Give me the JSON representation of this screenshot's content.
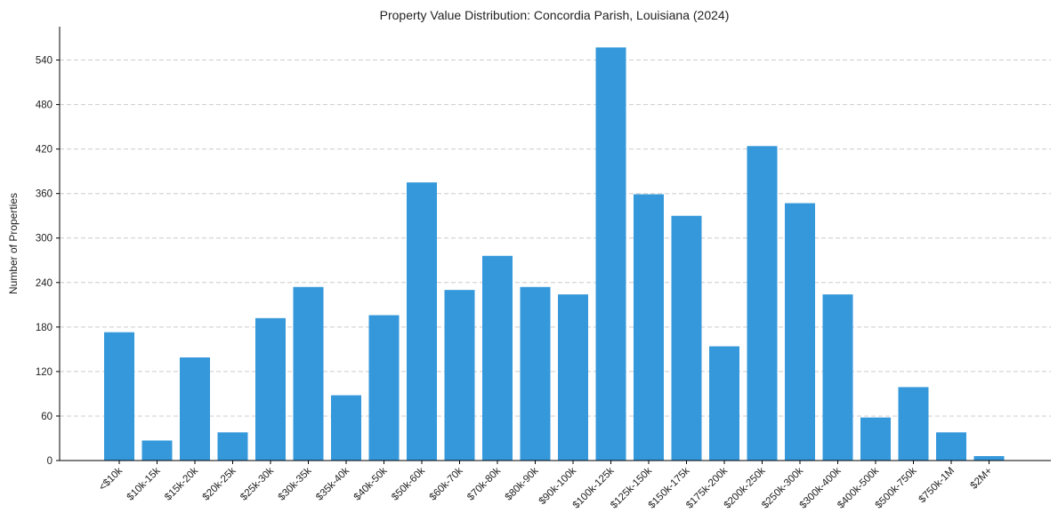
{
  "chart_data": {
    "type": "bar",
    "title": "Property Value Distribution: Concordia Parish, Louisiana (2024)",
    "xlabel": "",
    "ylabel": "Number of Properties",
    "categories": [
      "<$10k",
      "$10k-15k",
      "$15k-20k",
      "$20k-25k",
      "$25k-30k",
      "$30k-35k",
      "$35k-40k",
      "$40k-50k",
      "$50k-60k",
      "$60k-70k",
      "$70k-80k",
      "$80k-90k",
      "$90k-100k",
      "$100k-125k",
      "$125k-150k",
      "$150k-175k",
      "$175k-200k",
      "$200k-250k",
      "$250k-300k",
      "$300k-400k",
      "$400k-500k",
      "$500k-750k",
      "$750k-1M",
      "$2M+"
    ],
    "values": [
      173,
      27,
      139,
      38,
      192,
      234,
      88,
      196,
      375,
      230,
      276,
      234,
      224,
      557,
      359,
      330,
      154,
      424,
      347,
      224,
      58,
      99,
      38,
      6
    ],
    "ylim": [
      0,
      585
    ],
    "yticks": [
      0,
      60,
      120,
      180,
      240,
      300,
      360,
      420,
      480,
      540
    ],
    "grid": "y-dashed",
    "colors": {
      "bar": "#3498db",
      "grid": "#cccccc",
      "axis": "#000000"
    }
  }
}
